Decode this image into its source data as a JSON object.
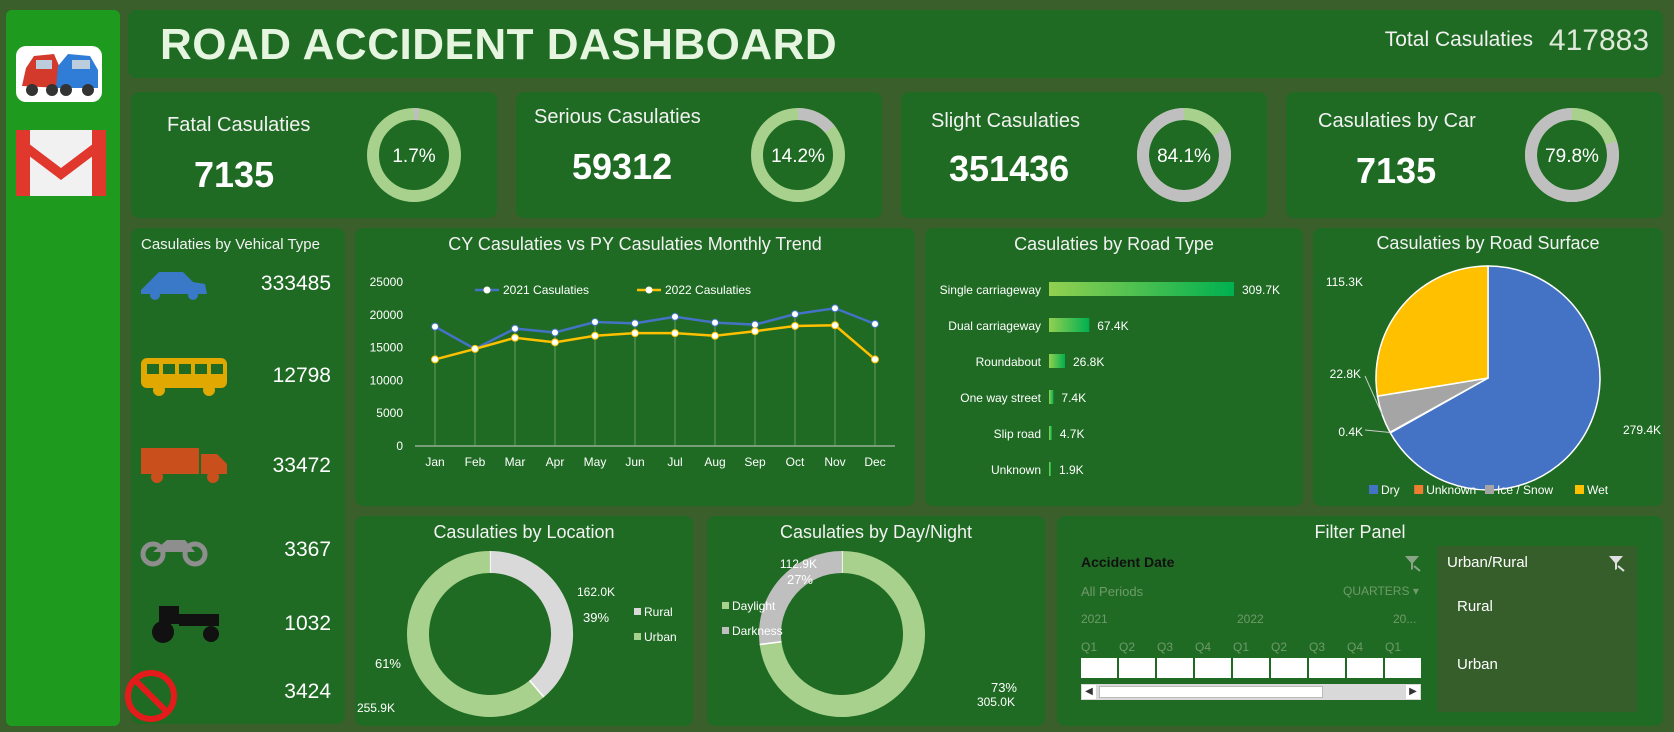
{
  "header": {
    "title": "ROAD ACCIDENT DASHBOARD",
    "total_label": "Total Casulaties",
    "total_value": "417883"
  },
  "sidebar": {
    "icons": [
      "car-crash-icon",
      "gmail-icon"
    ]
  },
  "kpis": [
    {
      "label": "Fatal Casulaties",
      "value": "7135",
      "pct_label": "1.7%",
      "pct": 1.7
    },
    {
      "label": "Serious Casulaties",
      "value": "59312",
      "pct_label": "14.2%",
      "pct": 14.2
    },
    {
      "label": "Slight Casulaties",
      "value": "351436",
      "pct_label": "84.1%",
      "pct": 84.1
    },
    {
      "label": "Casulaties by Car",
      "value": "7135",
      "pct_label": "79.8%",
      "pct": 79.8
    }
  ],
  "vehicle": {
    "title": "Casulaties by Vehical Type",
    "items": [
      {
        "icon": "car-icon",
        "value": "333485"
      },
      {
        "icon": "bus-icon",
        "value": "12798"
      },
      {
        "icon": "truck-icon",
        "value": "33472"
      },
      {
        "icon": "motorcycle-icon",
        "value": "3367"
      },
      {
        "icon": "tractor-icon",
        "value": "1032"
      },
      {
        "icon": "no-entry-icon",
        "value": "3424"
      }
    ]
  },
  "colors": {
    "accent_blue": "#4472c4",
    "accent_yellow": "#ffc000",
    "donut_light": "#a9d18e",
    "donut_gray": "#c0c0c0"
  },
  "chart_data": [
    {
      "type": "line",
      "title": "CY Casulaties vs PY Casulaties Monthly Trend",
      "categories": [
        "Jan",
        "Feb",
        "Mar",
        "Apr",
        "May",
        "Jun",
        "Jul",
        "Aug",
        "Sep",
        "Oct",
        "Nov",
        "Dec"
      ],
      "yticks": [
        "25000",
        "20000",
        "15000",
        "10000",
        "5000",
        "0"
      ],
      "ylim": [
        0,
        25000
      ],
      "series": [
        {
          "name": "2021 Casulaties",
          "values": [
            18200,
            14800,
            17900,
            17300,
            18900,
            18700,
            19700,
            18800,
            18500,
            20100,
            21000,
            18600
          ]
        },
        {
          "name": "2022 Casulaties",
          "values": [
            13200,
            14800,
            16500,
            15800,
            16800,
            17200,
            17200,
            16800,
            17500,
            18300,
            18400,
            13200
          ]
        }
      ]
    },
    {
      "type": "bar",
      "title": "Casulaties by Road Type",
      "categories": [
        "Single carriageway",
        "Dual carriageway",
        "Roundabout",
        "One way street",
        "Slip road",
        "Unknown"
      ],
      "values": [
        309.7,
        67.4,
        26.8,
        7.4,
        4.7,
        1.9
      ],
      "labels": [
        "309.7K",
        "67.4K",
        "26.8K",
        "7.4K",
        "4.7K",
        "1.9K"
      ]
    },
    {
      "type": "pie",
      "title": "Casulaties by Road Surface",
      "categories": [
        "Dry",
        "Unknown",
        "Ice / Snow",
        "Wet"
      ],
      "values": [
        279.4,
        0.4,
        22.8,
        115.3
      ],
      "labels": [
        "279.4K",
        "0.4K",
        "22.8K",
        "115.3K"
      ]
    },
    {
      "type": "pie",
      "title": "Casulaties by Location",
      "categories": [
        "Rural",
        "Urban"
      ],
      "values": [
        162.0,
        255.9
      ],
      "labels": [
        "162.0K",
        "255.9K"
      ],
      "pct": [
        "39%",
        "61%"
      ]
    },
    {
      "type": "pie",
      "title": "Casulaties by Day/Night",
      "categories": [
        "Daylight",
        "Darkness"
      ],
      "values": [
        305.0,
        112.9
      ],
      "labels": [
        "305.0K",
        "112.9K"
      ],
      "pct": [
        "73%",
        "27%"
      ]
    }
  ],
  "filter": {
    "title": "Filter Panel",
    "date_label": "Accident Date",
    "all_periods": "All Periods",
    "quarters": "QUARTERS",
    "years": [
      "2021",
      "2022",
      "20..."
    ],
    "quarter_labels": [
      "Q1",
      "Q2",
      "Q3",
      "Q4",
      "Q1",
      "Q2",
      "Q3",
      "Q4",
      "Q1"
    ],
    "urban_label": "Urban/Rural",
    "urban_items": [
      "Rural",
      "Urban"
    ]
  }
}
